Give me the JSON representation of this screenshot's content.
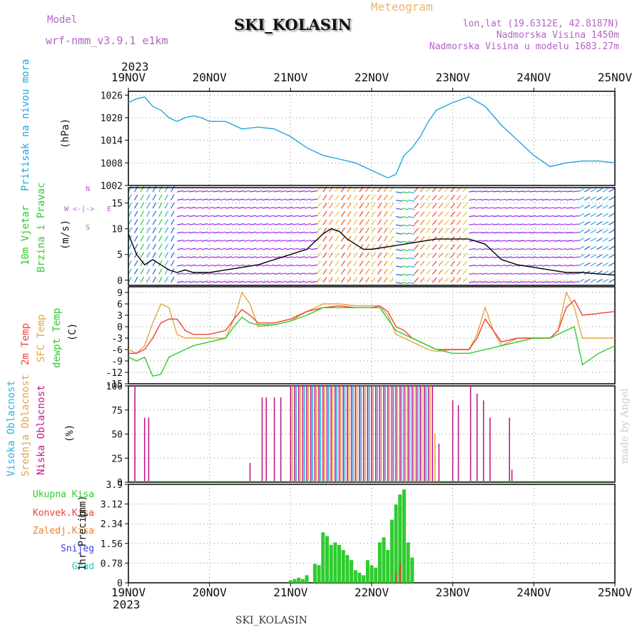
{
  "header": {
    "model_label": "Model",
    "model_name": "wrf-nmm_v3.9.1  e1km",
    "station": "SKI_KOLASIN",
    "meteogram_label": "Meteogram",
    "lonlat": "lon,lat (19.6312E, 42.8187N)",
    "altitude": "Nadmorska Visina 1450m",
    "model_altitude": "Nadmorska Visina u modelu 1683.27m",
    "year": "2023",
    "made_by": "made by Angel"
  },
  "colors": {
    "pressure": "#1ea7e1",
    "t2m": "#f0413c",
    "sfc": "#e2a73f",
    "dewpt": "#2ecc2e",
    "high_cloud": "#2ab2e6",
    "mid_cloud": "#e2a73f",
    "low_cloud": "#c01a8c",
    "precip_total": "#2ecc2e",
    "precip_conv": "#f0413c",
    "precip_frozen": "#f07f2a",
    "snow": "#4040e0",
    "graupel": "#2ec3b8"
  },
  "chart_data": [
    {
      "type": "line",
      "name": "sea-level-pressure",
      "ylabel": "Pritisak na nivou mora",
      "unit": "(hPa)",
      "x_ticks": [
        "19NOV",
        "20NOV",
        "21NOV",
        "22NOV",
        "23NOV",
        "24NOV",
        "25NOV"
      ],
      "ylim": [
        1002,
        1027
      ],
      "y_ticks": [
        1002,
        1008,
        1014,
        1020,
        1026
      ],
      "grid": true,
      "series": [
        {
          "x": [
            0,
            0.1,
            0.2,
            0.3,
            0.4,
            0.5,
            0.6,
            0.7,
            0.8,
            0.9,
            1.0,
            1.2,
            1.4,
            1.6,
            1.8,
            2.0,
            2.2,
            2.4,
            2.6,
            2.8,
            3.0,
            3.1,
            3.2,
            3.3,
            3.4,
            3.5,
            3.6,
            3.7,
            3.8,
            3.9,
            4.0,
            4.2,
            4.4,
            4.6,
            4.7,
            4.8,
            5.0,
            5.2,
            5.4,
            5.6,
            5.8,
            6.0
          ],
          "y": [
            1024,
            1025,
            1025.5,
            1023,
            1022,
            1020,
            1019,
            1020,
            1020.5,
            1020,
            1019,
            1019,
            1017,
            1017.5,
            1017,
            1015,
            1012,
            1010,
            1009,
            1008,
            1006,
            1005,
            1004,
            1005,
            1010,
            1012,
            1015,
            1019,
            1022,
            1023,
            1024,
            1025.5,
            1023,
            1018,
            1016,
            1014,
            1010,
            1007,
            1008,
            1008.5,
            1008.5,
            1008
          ]
        }
      ]
    },
    {
      "type": "line",
      "name": "wind",
      "ylabel": "10m Vjetar",
      "ylabel2": "Brzina i Pravac",
      "unit": "(m/s)",
      "compass": [
        "N",
        "W",
        "<-|->",
        "E",
        "S"
      ],
      "ylim": [
        -1,
        18
      ],
      "y_ticks": [
        0,
        5,
        10,
        15
      ],
      "grid": true,
      "series": [
        {
          "name": "speed",
          "x": [
            0,
            0.1,
            0.2,
            0.3,
            0.4,
            0.5,
            0.6,
            0.7,
            0.8,
            1.0,
            1.2,
            1.4,
            1.6,
            1.8,
            2.0,
            2.2,
            2.4,
            2.5,
            2.6,
            2.7,
            2.8,
            2.9,
            3.0,
            3.2,
            3.4,
            3.6,
            3.8,
            3.9,
            4.0,
            4.2,
            4.4,
            4.6,
            4.8,
            5.0,
            5.2,
            5.4,
            5.6,
            5.8,
            6.0
          ],
          "y": [
            9,
            5,
            3,
            4,
            3,
            2,
            1.5,
            2,
            1.5,
            1.5,
            2,
            2.5,
            3,
            4,
            5,
            6,
            9,
            10,
            9.5,
            8,
            7,
            6,
            6,
            6.5,
            7,
            7.5,
            8,
            8,
            8,
            8,
            7,
            4,
            3,
            2.5,
            2,
            1.5,
            1.5,
            1.2,
            1
          ]
        }
      ]
    },
    {
      "type": "line",
      "name": "temperature",
      "series_labels": [
        "2m Temp",
        "SFC Temp",
        "dewpt Temp"
      ],
      "unit": "(C)",
      "ylim": [
        -15,
        10.5
      ],
      "y_ticks": [
        -15,
        -12,
        -9,
        -6,
        -3,
        0,
        3,
        6,
        9
      ],
      "grid": true,
      "series": [
        {
          "name": "2m Temp",
          "x": [
            0,
            0.1,
            0.2,
            0.3,
            0.4,
            0.5,
            0.6,
            0.7,
            0.8,
            0.9,
            1.0,
            1.2,
            1.3,
            1.4,
            1.5,
            1.6,
            1.8,
            2.0,
            2.2,
            2.4,
            2.6,
            2.8,
            3.0,
            3.1,
            3.2,
            3.3,
            3.4,
            3.5,
            3.6,
            3.7,
            3.8,
            4.0,
            4.2,
            4.3,
            4.4,
            4.5,
            4.6,
            4.8,
            5.0,
            5.2,
            5.3,
            5.4,
            5.5,
            5.6,
            5.8,
            6.0
          ],
          "y": [
            -7,
            -7,
            -6,
            -3,
            1,
            2,
            2,
            -1,
            -2,
            -2,
            -2,
            -1,
            2,
            4.5,
            3,
            1,
            1,
            2,
            4,
            5,
            5.5,
            5,
            5,
            5.5,
            4,
            0,
            -1,
            -3,
            -4,
            -5,
            -6,
            -6,
            -6,
            -3,
            2,
            -1,
            -4,
            -3,
            -3,
            -3,
            -1,
            5,
            7,
            3,
            3.5,
            4
          ]
        },
        {
          "name": "SFC Temp",
          "x": [
            0,
            0.1,
            0.2,
            0.3,
            0.4,
            0.5,
            0.6,
            0.7,
            0.8,
            1.0,
            1.2,
            1.3,
            1.4,
            1.5,
            1.6,
            1.8,
            2.0,
            2.2,
            2.4,
            2.6,
            2.8,
            3.0,
            3.1,
            3.2,
            3.3,
            3.4,
            3.5,
            3.6,
            3.7,
            3.8,
            4.0,
            4.2,
            4.3,
            4.4,
            4.5,
            4.6,
            4.8,
            5.0,
            5.2,
            5.3,
            5.4,
            5.5,
            5.6,
            5.8,
            6.0
          ],
          "y": [
            -6,
            -7,
            -5,
            1,
            6,
            5,
            -2,
            -3,
            -3,
            -3,
            -3,
            2,
            9,
            6,
            0,
            0.5,
            1.5,
            4,
            6,
            6,
            5.5,
            5.5,
            5.5,
            3,
            -2,
            -3,
            -4,
            -5,
            -6,
            -6.5,
            -6,
            -6,
            -2,
            5,
            -1,
            -5,
            -3,
            -3,
            -3,
            -1,
            9,
            5,
            -3,
            -3,
            -3
          ]
        },
        {
          "name": "dewpt Temp",
          "x": [
            0,
            0.1,
            0.2,
            0.3,
            0.4,
            0.5,
            0.6,
            0.7,
            0.8,
            1.0,
            1.2,
            1.3,
            1.4,
            1.5,
            1.6,
            1.8,
            2.0,
            2.2,
            2.4,
            2.6,
            2.8,
            3.0,
            3.1,
            3.2,
            3.3,
            3.4,
            3.5,
            3.6,
            3.7,
            3.8,
            4.0,
            4.2,
            4.4,
            4.6,
            4.8,
            5.0,
            5.2,
            5.4,
            5.5,
            5.6,
            5.8,
            6.0
          ],
          "y": [
            -8,
            -9,
            -8,
            -13,
            -12.5,
            -8,
            -7,
            -6,
            -5,
            -4,
            -3,
            0,
            2.5,
            1,
            0.5,
            0.5,
            1.5,
            3,
            5,
            5,
            5,
            5,
            5,
            2,
            -1,
            -2,
            -3,
            -4,
            -5,
            -6,
            -7,
            -7,
            -6,
            -5,
            -4,
            -3,
            -3,
            -1,
            0,
            -10,
            -7,
            -5
          ]
        }
      ]
    },
    {
      "type": "bar",
      "name": "cloud-cover",
      "series_labels": [
        "Visoka Oblacnost",
        "Srednja Oblacnost",
        "Niska Oblacnost"
      ],
      "unit": "(%)",
      "ylim": [
        0,
        100
      ],
      "y_ticks": [
        0,
        25,
        50,
        75,
        100
      ],
      "grid": true,
      "series": [
        {
          "name": "Niska Oblacnost",
          "x": [
            0.08,
            0.2,
            0.25,
            1.5,
            1.65,
            1.7,
            1.8,
            1.88,
            2.0,
            2.05,
            2.1,
            2.15,
            2.2,
            2.25,
            2.3,
            2.35,
            2.4,
            2.45,
            2.5,
            2.55,
            2.6,
            2.65,
            2.7,
            2.75,
            2.8,
            2.85,
            2.9,
            2.95,
            3.0,
            3.05,
            3.1,
            3.15,
            3.2,
            3.25,
            3.3,
            3.35,
            3.4,
            3.45,
            3.5,
            3.55,
            3.6,
            3.65,
            3.7,
            3.75,
            3.83,
            4.0,
            4.07,
            4.22,
            4.3,
            4.38,
            4.46,
            4.7,
            4.73
          ],
          "y": [
            100,
            67,
            67,
            20,
            88,
            88,
            88,
            88,
            100,
            100,
            100,
            100,
            100,
            100,
            100,
            100,
            100,
            100,
            100,
            100,
            100,
            100,
            100,
            100,
            100,
            100,
            100,
            100,
            100,
            100,
            100,
            100,
            100,
            100,
            100,
            100,
            100,
            100,
            100,
            100,
            100,
            100,
            100,
            100,
            40,
            85,
            80,
            100,
            92,
            85,
            67,
            67,
            13
          ]
        },
        {
          "name": "Srednja Oblacnost",
          "x": [
            2.02,
            2.12,
            2.22,
            2.32,
            2.42,
            2.52,
            2.62,
            2.72,
            2.82,
            2.92,
            3.02,
            3.12,
            3.22,
            3.32,
            3.42,
            3.52,
            3.62,
            3.72,
            3.78
          ],
          "y": [
            100,
            100,
            100,
            100,
            100,
            100,
            100,
            100,
            100,
            100,
            100,
            100,
            100,
            100,
            100,
            100,
            100,
            100,
            50
          ]
        },
        {
          "name": "Visoka Oblacnost",
          "x": [
            2.07,
            2.17,
            2.27,
            2.37,
            2.47,
            2.57,
            2.67,
            2.77,
            2.87,
            2.97,
            3.07,
            3.17,
            3.27,
            3.37,
            3.47,
            3.57,
            3.67
          ],
          "y": [
            100,
            100,
            100,
            100,
            100,
            100,
            100,
            100,
            100,
            100,
            100,
            100,
            100,
            100,
            100,
            100,
            100
          ]
        }
      ]
    },
    {
      "type": "bar",
      "name": "precipitation",
      "series_labels": [
        "Ukupna Kisa",
        "Konvek.Kisa",
        "Zaledj.Kisa",
        "Snijeg",
        "Grad"
      ],
      "ylabel": "1hr Precip",
      "unit": "(mm)",
      "ylim": [
        0,
        3.9
      ],
      "y_ticks": [
        0,
        0.78,
        1.56,
        2.34,
        3.12,
        3.9
      ],
      "grid": true,
      "series": [
        {
          "name": "Ukupna Kisa",
          "x": [
            2.0,
            2.05,
            2.1,
            2.15,
            2.2,
            2.3,
            2.35,
            2.4,
            2.45,
            2.5,
            2.55,
            2.6,
            2.65,
            2.7,
            2.75,
            2.8,
            2.85,
            2.9,
            2.95,
            3.0,
            3.05,
            3.1,
            3.15,
            3.2,
            3.25,
            3.3,
            3.35,
            3.4,
            3.45,
            3.5
          ],
          "y": [
            0.1,
            0.15,
            0.2,
            0.15,
            0.3,
            0.75,
            0.7,
            2.0,
            1.85,
            1.5,
            1.6,
            1.5,
            1.3,
            1.1,
            0.9,
            0.5,
            0.4,
            0.3,
            0.9,
            0.7,
            0.6,
            1.6,
            1.8,
            1.3,
            2.5,
            3.1,
            3.5,
            3.7,
            1.6,
            1.0
          ]
        },
        {
          "name": "Konvek.Kisa",
          "x": [
            3.3,
            3.35
          ],
          "y": [
            0.4,
            0.8
          ]
        }
      ]
    }
  ]
}
